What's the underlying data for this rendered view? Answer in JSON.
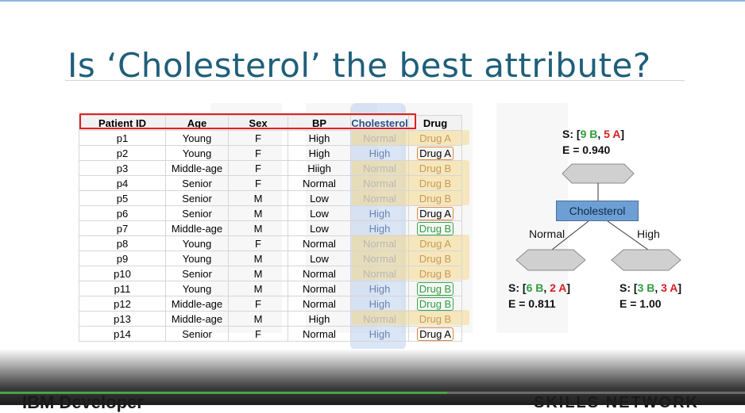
{
  "slide": {
    "title": "Is ‘Cholesterol’ the best attribute?"
  },
  "table": {
    "headers": [
      "Patient ID",
      "Age",
      "Sex",
      "BP",
      "Cholesterol",
      "Drug"
    ],
    "rows": [
      [
        "p1",
        "Young",
        "F",
        "High",
        "Normal",
        "Drug A"
      ],
      [
        "p2",
        "Young",
        "F",
        "High",
        "High",
        "Drug A"
      ],
      [
        "p3",
        "Middle-age",
        "F",
        "Hiigh",
        "Normal",
        "Drug B"
      ],
      [
        "p4",
        "Senior",
        "F",
        "Normal",
        "Normal",
        "Drug B"
      ],
      [
        "p5",
        "Senior",
        "M",
        "Low",
        "Normal",
        "Drug B"
      ],
      [
        "p6",
        "Senior",
        "M",
        "Low",
        "High",
        "Drug A"
      ],
      [
        "p7",
        "Middle-age",
        "M",
        "Low",
        "High",
        "Drug B"
      ],
      [
        "p8",
        "Young",
        "F",
        "Normal",
        "Normal",
        "Drug A"
      ],
      [
        "p9",
        "Young",
        "M",
        "Low",
        "Normal",
        "Drug B"
      ],
      [
        "p10",
        "Senior",
        "M",
        "Normal",
        "Normal",
        "Drug B"
      ],
      [
        "p11",
        "Young",
        "M",
        "Normal",
        "High",
        "Drug B"
      ],
      [
        "p12",
        "Middle-age",
        "F",
        "Normal",
        "High",
        "Drug B"
      ],
      [
        "p13",
        "Middle-age",
        "M",
        "High",
        "Normal",
        "Drug B"
      ],
      [
        "p14",
        "Senior",
        "F",
        "Normal",
        "High",
        "Drug A"
      ]
    ]
  },
  "tree": {
    "root": {
      "s_prefix": "S: [",
      "b_count": "9 B",
      "sep": ", ",
      "a_count": "5 A",
      "s_suffix": "]",
      "entropy": "E = 0.940"
    },
    "node_label": "Cholesterol",
    "left_branch": "Normal",
    "right_branch": "High",
    "left": {
      "s_prefix": "S: [",
      "b_count": "6 B",
      "sep": ", ",
      "a_count": "2 A",
      "s_suffix": "]",
      "entropy": "E = 0.811"
    },
    "right": {
      "s_prefix": "S: [",
      "b_count": "3 B",
      "sep": ", ",
      "a_count": "3 A",
      "s_suffix": "]",
      "entropy": "E = 1.00"
    }
  },
  "footer": {
    "brand_left": "IBM Developer",
    "brand_right": "SKILLS NETWORK"
  },
  "colors": {
    "title": "#1f5f7a",
    "highlight_red": "#e02020",
    "b_green": "#2e9e3e",
    "a_red": "#d42020",
    "node_blue": "#6e9fd4"
  },
  "video": {
    "progress": 0.6
  }
}
